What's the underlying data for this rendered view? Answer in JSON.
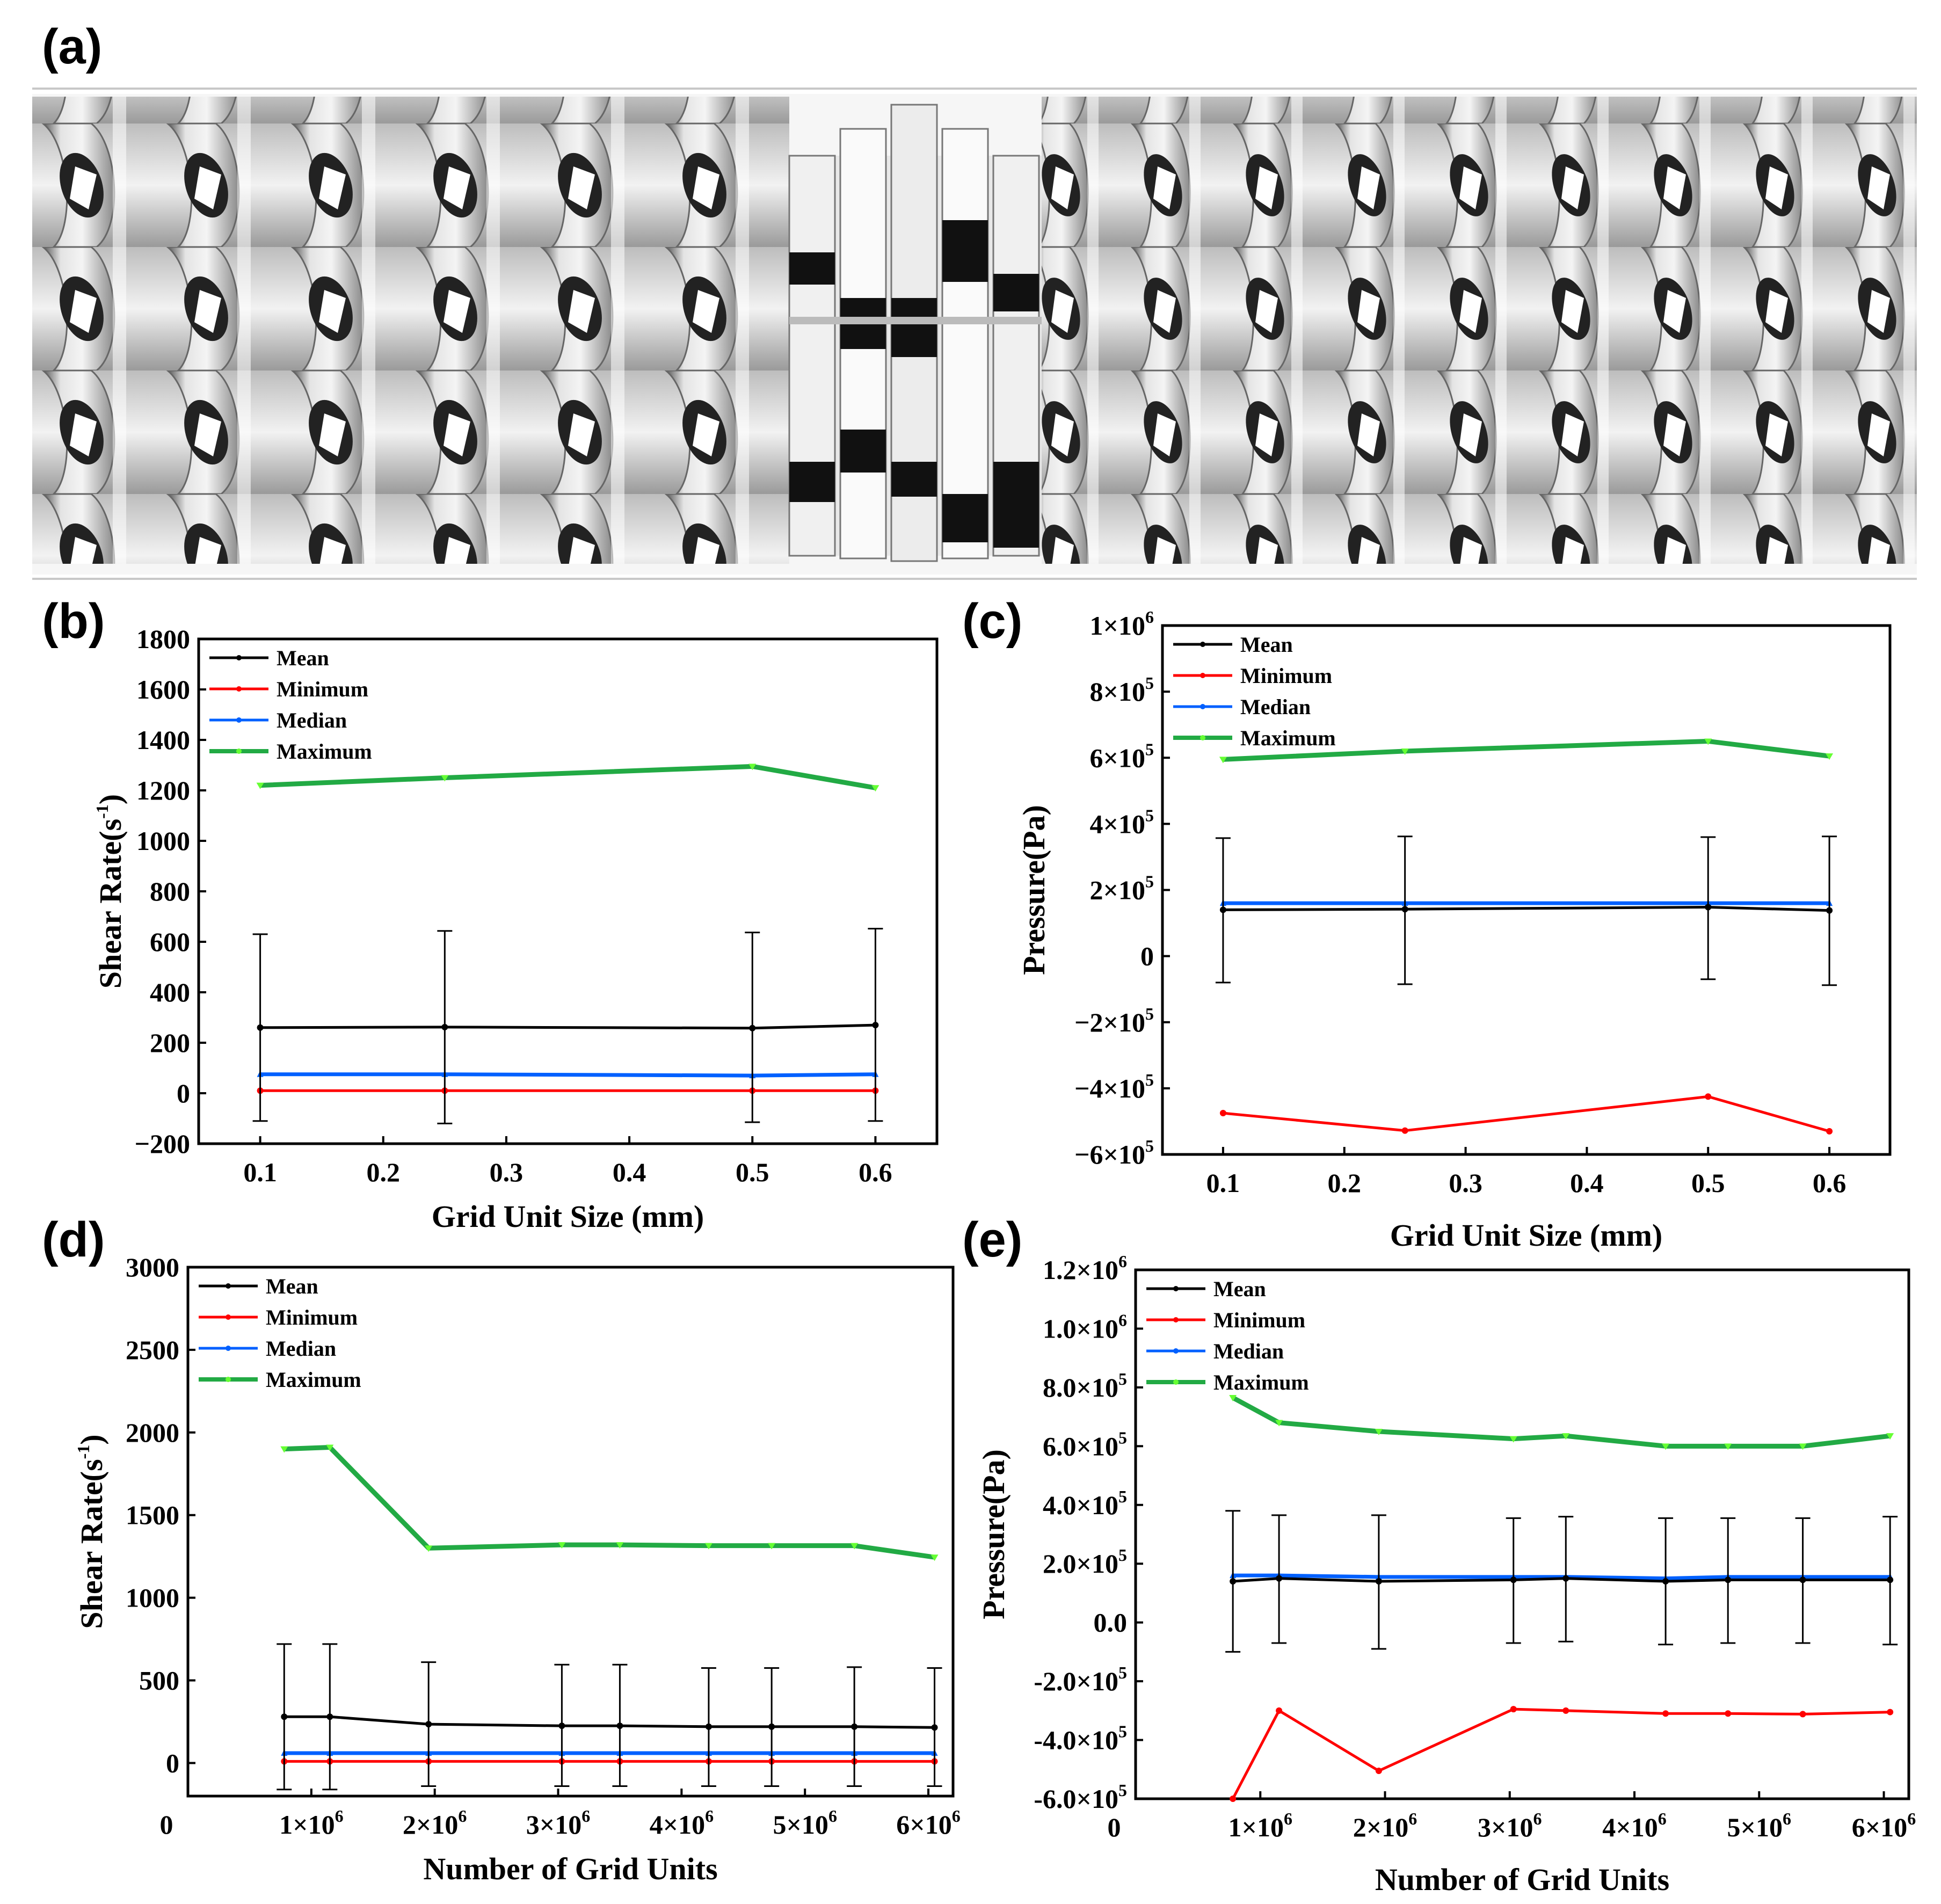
{
  "panels": {
    "a": "(a)",
    "b": "(b)",
    "c": "(c)",
    "d": "(d)",
    "e": "(e)"
  },
  "colors": {
    "mean": "#000000",
    "minimum": "#ff0000",
    "median": "#0060ff",
    "maximum": "#22aa44",
    "maximum_marker": "#66ff33"
  },
  "chart_data": [
    {
      "id": "b",
      "type": "line",
      "xlabel": "Grid Unit Size (mm)",
      "ylabel_base": "Shear Rate(s",
      "ylabel_sup": "-1",
      "ylabel_end": ")",
      "xlim": [
        0.05,
        0.65
      ],
      "ylim": [
        -200,
        1800
      ],
      "xticks": [
        0.1,
        0.2,
        0.3,
        0.4,
        0.5,
        0.6
      ],
      "xtick_labels": [
        "0.1",
        "0.2",
        "0.3",
        "0.4",
        "0.5",
        "0.6"
      ],
      "yticks": [
        -200,
        0,
        200,
        400,
        600,
        800,
        1000,
        1200,
        1400,
        1600,
        1800
      ],
      "ytick_labels": [
        "−200",
        "0",
        "200",
        "400",
        "600",
        "800",
        "1000",
        "1200",
        "1400",
        "1600",
        "1800"
      ],
      "legend": [
        "Mean",
        "Minimum",
        "Median",
        "Maximum"
      ],
      "x": [
        0.1,
        0.25,
        0.5,
        0.6
      ],
      "series": [
        {
          "name": "Mean",
          "values": [
            260,
            262,
            258,
            270
          ],
          "err_low": [
            -110,
            -120,
            -115,
            -110
          ],
          "err_high": [
            630,
            643,
            637,
            652
          ]
        },
        {
          "name": "Minimum",
          "values": [
            10,
            10,
            10,
            10
          ]
        },
        {
          "name": "Median",
          "values": [
            75,
            75,
            70,
            75
          ]
        },
        {
          "name": "Maximum",
          "values": [
            1220,
            1250,
            1295,
            1210
          ]
        }
      ]
    },
    {
      "id": "c",
      "type": "line",
      "xlabel": "Grid Unit Size (mm)",
      "ylabel_base": "Pressure(Pa)",
      "ylabel_sup": "",
      "ylabel_end": "",
      "xlim": [
        0.05,
        0.65
      ],
      "ylim": [
        -600000,
        1000000
      ],
      "xticks": [
        0.1,
        0.2,
        0.3,
        0.4,
        0.5,
        0.6
      ],
      "xtick_labels": [
        "0.1",
        "0.2",
        "0.3",
        "0.4",
        "0.5",
        "0.6"
      ],
      "yticks": [
        -600000,
        -400000,
        -200000,
        0,
        200000,
        400000,
        600000,
        800000,
        1000000
      ],
      "ytick_labels": [
        {
          "m": "−6×10",
          "e": "5"
        },
        {
          "m": "−4×10",
          "e": "5"
        },
        {
          "m": "−2×10",
          "e": "5"
        },
        {
          "m": "0",
          "e": ""
        },
        {
          "m": "2×10",
          "e": "5"
        },
        {
          "m": "4×10",
          "e": "5"
        },
        {
          "m": "6×10",
          "e": "5"
        },
        {
          "m": "8×10",
          "e": "5"
        },
        {
          "m": "1×10",
          "e": "6"
        }
      ],
      "legend": [
        "Mean",
        "Minimum",
        "Median",
        "Maximum"
      ],
      "x": [
        0.1,
        0.25,
        0.5,
        0.6
      ],
      "series": [
        {
          "name": "Mean",
          "values": [
            140000,
            142000,
            148000,
            138000
          ],
          "err_low": [
            -80000,
            -85000,
            -70000,
            -88000
          ],
          "err_high": [
            357000,
            362000,
            360000,
            362000
          ]
        },
        {
          "name": "Minimum",
          "values": [
            -475000,
            -528000,
            -425000,
            -530000
          ]
        },
        {
          "name": "Median",
          "values": [
            160000,
            160000,
            160000,
            160000
          ]
        },
        {
          "name": "Maximum",
          "values": [
            595000,
            620000,
            650000,
            605000
          ]
        }
      ]
    },
    {
      "id": "d",
      "type": "line",
      "xlabel": "Number of Grid Units",
      "ylabel_base": "Shear Rate(s",
      "ylabel_sup": "-1",
      "ylabel_end": ")",
      "xlim": [
        0,
        6200000
      ],
      "ylim": [
        -200,
        3000
      ],
      "xticks": [
        1000000,
        2000000,
        3000000,
        4000000,
        5000000,
        6000000
      ],
      "xtick_labels": [
        {
          "m": "1×10",
          "e": "6"
        },
        {
          "m": "2×10",
          "e": "6"
        },
        {
          "m": "3×10",
          "e": "6"
        },
        {
          "m": "4×10",
          "e": "6"
        },
        {
          "m": "5×10",
          "e": "6"
        },
        {
          "m": "6×10",
          "e": "6"
        }
      ],
      "x_origin_label": "0",
      "yticks": [
        0,
        500,
        1000,
        1500,
        2000,
        2500,
        3000
      ],
      "ytick_labels": [
        "0",
        "500",
        "1000",
        "1500",
        "2000",
        "2500",
        "3000"
      ],
      "legend": [
        "Mean",
        "Minimum",
        "Median",
        "Maximum"
      ],
      "x": [
        780000,
        1150000,
        1950000,
        3030000,
        3500000,
        4220000,
        4730000,
        5400000,
        6050000
      ],
      "series": [
        {
          "name": "Mean",
          "values": [
            280,
            280,
            235,
            225,
            225,
            220,
            220,
            220,
            215
          ],
          "err_low": [
            -160,
            -160,
            -140,
            -140,
            -140,
            -140,
            -140,
            -140,
            -140
          ],
          "err_high": [
            720,
            720,
            610,
            595,
            595,
            575,
            575,
            580,
            575
          ]
        },
        {
          "name": "Minimum",
          "values": [
            10,
            10,
            10,
            10,
            10,
            10,
            10,
            10,
            10
          ]
        },
        {
          "name": "Median",
          "values": [
            60,
            60,
            60,
            60,
            60,
            60,
            60,
            60,
            60
          ]
        },
        {
          "name": "Maximum",
          "values": [
            1900,
            1910,
            1300,
            1320,
            1320,
            1315,
            1315,
            1315,
            1245
          ]
        }
      ]
    },
    {
      "id": "e",
      "type": "line",
      "xlabel": "Number of Grid Units",
      "ylabel_base": "Pressure(Pa)",
      "ylabel_sup": "",
      "ylabel_end": "",
      "xlim": [
        0,
        6200000
      ],
      "ylim": [
        -600000,
        1200000
      ],
      "xticks": [
        1000000,
        2000000,
        3000000,
        4000000,
        5000000,
        6000000
      ],
      "xtick_labels": [
        {
          "m": "1×10",
          "e": "6"
        },
        {
          "m": "2×10",
          "e": "6"
        },
        {
          "m": "3×10",
          "e": "6"
        },
        {
          "m": "4×10",
          "e": "6"
        },
        {
          "m": "5×10",
          "e": "6"
        },
        {
          "m": "6×10",
          "e": "6"
        }
      ],
      "x_origin_label": "0",
      "yticks": [
        -600000,
        -400000,
        -200000,
        0,
        200000,
        400000,
        600000,
        800000,
        1000000,
        1200000
      ],
      "ytick_labels": [
        {
          "m": "-6.0×10",
          "e": "5"
        },
        {
          "m": "-4.0×10",
          "e": "5"
        },
        {
          "m": "-2.0×10",
          "e": "5"
        },
        {
          "m": "0.0",
          "e": ""
        },
        {
          "m": "2.0×10",
          "e": "5"
        },
        {
          "m": "4.0×10",
          "e": "5"
        },
        {
          "m": "6.0×10",
          "e": "5"
        },
        {
          "m": "8.0×10",
          "e": "5"
        },
        {
          "m": "1.0×10",
          "e": "6"
        },
        {
          "m": "1.2×10",
          "e": "6"
        }
      ],
      "legend": [
        "Mean",
        "Minimum",
        "Median",
        "Maximum"
      ],
      "x": [
        780000,
        1150000,
        1950000,
        3030000,
        3450000,
        4250000,
        4750000,
        5350000,
        6050000
      ],
      "series": [
        {
          "name": "Mean",
          "values": [
            140000,
            150000,
            140000,
            145000,
            150000,
            140000,
            145000,
            145000,
            145000
          ],
          "err_low": [
            -100000,
            -70000,
            -90000,
            -70000,
            -65000,
            -75000,
            -70000,
            -70000,
            -75000
          ],
          "err_high": [
            380000,
            365000,
            365000,
            355000,
            360000,
            355000,
            355000,
            355000,
            360000
          ]
        },
        {
          "name": "Minimum",
          "values": [
            -600000,
            -300000,
            -505000,
            -295000,
            -300000,
            -310000,
            -310000,
            -312000,
            -305000
          ]
        },
        {
          "name": "Median",
          "values": [
            160000,
            160000,
            155000,
            155000,
            155000,
            150000,
            155000,
            155000,
            155000
          ]
        },
        {
          "name": "Maximum",
          "values": [
            765000,
            680000,
            650000,
            625000,
            635000,
            600000,
            600000,
            600000,
            635000
          ]
        }
      ]
    }
  ]
}
